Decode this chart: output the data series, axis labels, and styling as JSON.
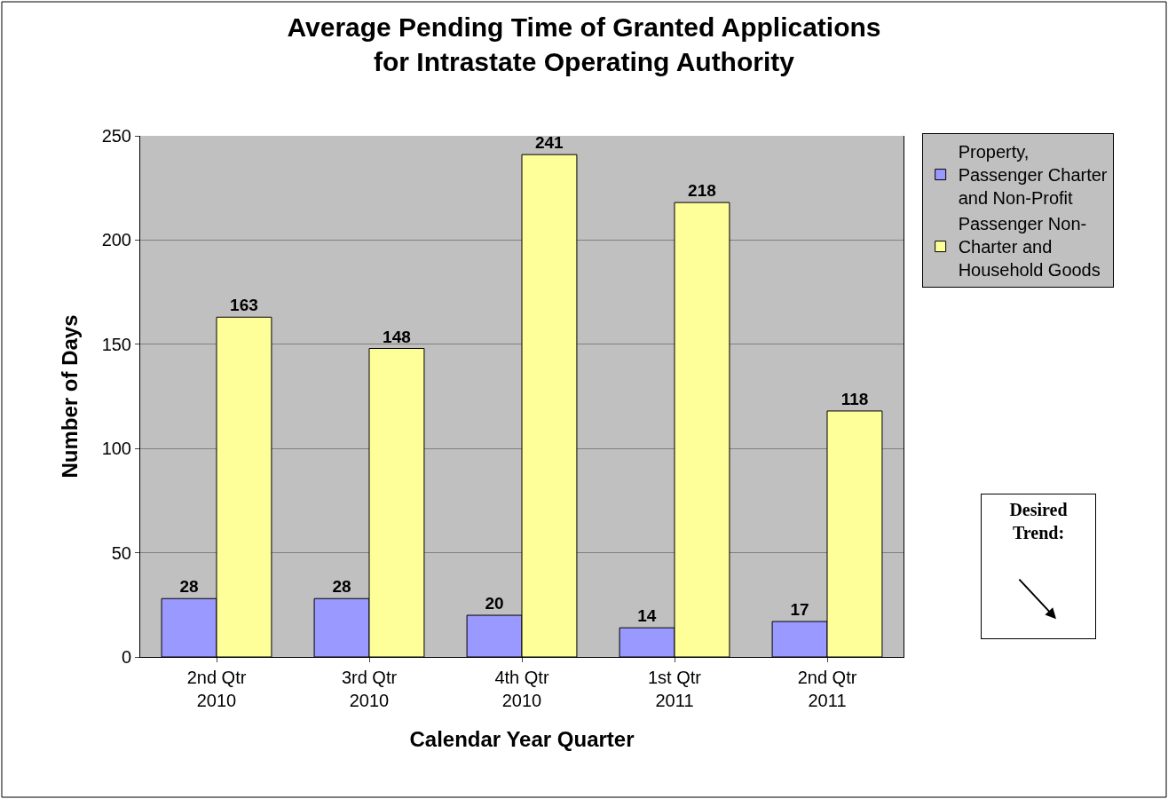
{
  "chart_data": {
    "type": "bar",
    "title": "Average Pending Time of Granted Applications\nfor Intrastate Operating Authority",
    "xlabel": "Calendar Year Quarter",
    "ylabel": "Number of Days",
    "categories": [
      "2nd Qtr\n2010",
      "3rd Qtr\n2010",
      "4th Qtr\n2010",
      "1st Qtr\n2011",
      "2nd Qtr\n2011"
    ],
    "series": [
      {
        "name": "Property, Passenger Charter and Non-Profit",
        "color": "#9999ff",
        "values": [
          28,
          28,
          20,
          14,
          17
        ]
      },
      {
        "name": "Passenger Non-Charter and Household Goods",
        "color": "#ffff99",
        "values": [
          163,
          148,
          241,
          218,
          118
        ]
      }
    ],
    "ylim": [
      0,
      250
    ],
    "yticks": [
      0,
      50,
      100,
      150,
      200,
      250
    ],
    "grid": "y",
    "legend": "right",
    "data_labels": true,
    "annotations": [
      "Desired Trend:"
    ]
  }
}
